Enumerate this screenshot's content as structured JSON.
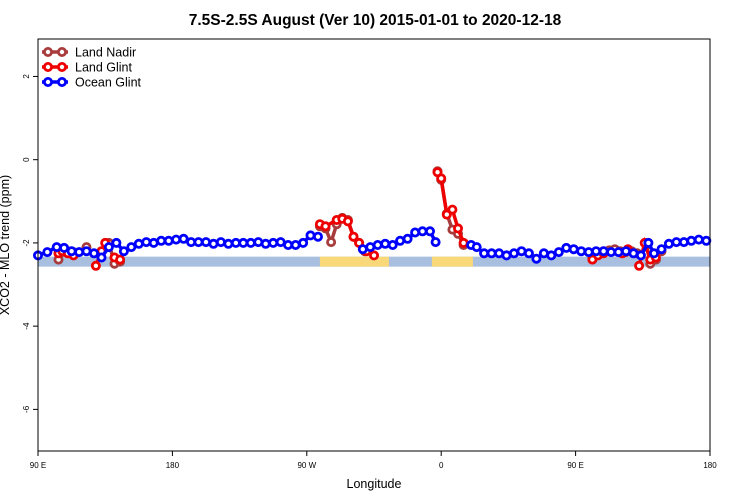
{
  "chart_data": {
    "type": "line",
    "title": "7.5S-2.5S August (Ver 10)   2015-01-01 to 2020-12-18",
    "xlabel": "Longitude",
    "ylabel": "XCO2 - MLO trend (ppm)",
    "xlim": [
      90,
      450
    ],
    "ylim": [
      -7,
      2.9
    ],
    "x_ticks": [
      {
        "value": 90,
        "label": "90 E"
      },
      {
        "value": 162,
        "label": "180"
      },
      {
        "value": 234,
        "label": "90 W"
      },
      {
        "value": 306,
        "label": "0"
      },
      {
        "value": 378,
        "label": "90 E"
      },
      {
        "value": 450,
        "label": "180"
      }
    ],
    "y_ticks": [
      {
        "value": 2,
        "label": "2"
      },
      {
        "value": 0,
        "label": "0"
      },
      {
        "value": -2,
        "label": "-2"
      },
      {
        "value": -4,
        "label": "-4"
      },
      {
        "value": -6,
        "label": "-6"
      }
    ],
    "grid": false,
    "legend_position": "top-left",
    "surface_band": {
      "y": -2.45,
      "ocean_color": "#a8bfe0",
      "land_color": "#f8d878",
      "land_ranges": [
        [
          241,
          278
        ],
        [
          301,
          323
        ]
      ]
    },
    "series": [
      {
        "name": "Land Nadir",
        "color": "#a83c3c",
        "segments": [
          [
            [
              101,
              -2.4
            ],
            [
              103,
              -2.22
            ],
            [
              106,
              -2.2
            ],
            [
              109,
              -2.22
            ]
          ],
          [
            [
              116,
              -2.1
            ]
          ],
          [
            [
              128,
              -2.0
            ],
            [
              131,
              -2.5
            ],
            [
              134,
              -2.45
            ]
          ],
          [
            [
              241,
              -1.6
            ],
            [
              244,
              -1.65
            ],
            [
              247,
              -1.98
            ],
            [
              250,
              -1.55
            ],
            [
              253,
              -1.4
            ],
            [
              256,
              -1.45
            ],
            [
              259,
              -1.85
            ],
            [
              262,
              -2.0
            ],
            [
              265,
              -2.2
            ]
          ],
          [
            [
              304,
              -0.28
            ],
            [
              306,
              -0.48
            ],
            [
              309,
              -1.3
            ],
            [
              312,
              -1.68
            ],
            [
              315,
              -1.78
            ],
            [
              318,
              -2.05
            ]
          ],
          [
            [
              387,
              -2.35
            ],
            [
              390,
              -2.25
            ],
            [
              393,
              -2.2
            ],
            [
              396,
              -2.18
            ],
            [
              399,
              -2.15
            ],
            [
              402,
              -2.2
            ],
            [
              405,
              -2.22
            ],
            [
              408,
              -2.2
            ],
            [
              411,
              -2.25
            ]
          ],
          [
            [
              416,
              -2.05
            ],
            [
              418,
              -2.5
            ],
            [
              421,
              -2.4
            ],
            [
              424,
              -2.2
            ]
          ]
        ]
      },
      {
        "name": "Land Glint",
        "color": "#ee0000",
        "segments": [
          [
            [
              101,
              -2.25
            ],
            [
              103,
              -2.2
            ],
            [
              106,
              -2.25
            ],
            [
              109,
              -2.3
            ]
          ],
          [
            [
              121,
              -2.55
            ],
            [
              124,
              -2.2
            ],
            [
              126,
              -2.0
            ]
          ],
          [
            [
              131,
              -2.35
            ],
            [
              134,
              -2.4
            ]
          ],
          [
            [
              241,
              -1.55
            ],
            [
              244,
              -1.6
            ],
            [
              250,
              -1.45
            ],
            [
              253,
              -1.42
            ],
            [
              256,
              -1.48
            ],
            [
              259,
              -1.85
            ],
            [
              262,
              -2.0
            ],
            [
              266,
              -2.2
            ],
            [
              270,
              -2.3
            ]
          ],
          [
            [
              304,
              -0.3
            ],
            [
              306,
              -0.45
            ],
            [
              309,
              -1.32
            ],
            [
              312,
              -1.2
            ],
            [
              315,
              -1.65
            ],
            [
              318,
              -2.0
            ]
          ],
          [
            [
              387,
              -2.4
            ],
            [
              390,
              -2.3
            ],
            [
              393,
              -2.25
            ]
          ],
          [
            [
              403,
              -2.25
            ],
            [
              406,
              -2.15
            ]
          ],
          [
            [
              412,
              -2.55
            ],
            [
              415,
              -2.0
            ],
            [
              418,
              -2.4
            ],
            [
              421,
              -2.35
            ]
          ]
        ]
      },
      {
        "name": "Ocean Glint",
        "color": "#0000ff",
        "segments": [
          [
            [
              90,
              -2.3
            ],
            [
              95,
              -2.22
            ],
            [
              100,
              -2.1
            ],
            [
              104,
              -2.12
            ],
            [
              108,
              -2.2
            ],
            [
              112,
              -2.22
            ],
            [
              116,
              -2.2
            ],
            [
              120,
              -2.25
            ],
            [
              124,
              -2.35
            ],
            [
              128,
              -2.1
            ],
            [
              132,
              -2.0
            ],
            [
              136,
              -2.2
            ],
            [
              140,
              -2.1
            ],
            [
              144,
              -2.02
            ],
            [
              148,
              -1.98
            ],
            [
              152,
              -2.0
            ],
            [
              156,
              -1.95
            ],
            [
              160,
              -1.95
            ],
            [
              164,
              -1.92
            ],
            [
              168,
              -1.9
            ],
            [
              172,
              -1.98
            ],
            [
              176,
              -1.98
            ],
            [
              180,
              -1.98
            ],
            [
              184,
              -2.02
            ],
            [
              188,
              -1.98
            ],
            [
              192,
              -2.02
            ],
            [
              196,
              -2.0
            ],
            [
              200,
              -2.0
            ],
            [
              204,
              -2.0
            ],
            [
              208,
              -1.98
            ],
            [
              212,
              -2.02
            ],
            [
              216,
              -2.0
            ],
            [
              220,
              -1.98
            ],
            [
              224,
              -2.05
            ],
            [
              228,
              -2.05
            ],
            [
              232,
              -2.0
            ],
            [
              236,
              -1.82
            ],
            [
              240,
              -1.85
            ]
          ],
          [
            [
              264,
              -2.15
            ],
            [
              268,
              -2.1
            ],
            [
              272,
              -2.05
            ],
            [
              276,
              -2.02
            ],
            [
              280,
              -2.05
            ],
            [
              284,
              -1.95
            ],
            [
              288,
              -1.9
            ],
            [
              292,
              -1.75
            ],
            [
              296,
              -1.72
            ],
            [
              300,
              -1.72
            ],
            [
              303,
              -1.98
            ]
          ],
          [
            [
              322,
              -2.05
            ],
            [
              325,
              -2.1
            ],
            [
              329,
              -2.25
            ],
            [
              333,
              -2.25
            ],
            [
              337,
              -2.25
            ],
            [
              341,
              -2.3
            ],
            [
              345,
              -2.25
            ],
            [
              349,
              -2.2
            ],
            [
              353,
              -2.25
            ],
            [
              357,
              -2.38
            ],
            [
              361,
              -2.25
            ],
            [
              365,
              -2.3
            ],
            [
              369,
              -2.22
            ],
            [
              373,
              -2.12
            ],
            [
              377,
              -2.15
            ],
            [
              381,
              -2.2
            ],
            [
              385,
              -2.22
            ],
            [
              389,
              -2.2
            ],
            [
              393,
              -2.2
            ],
            [
              397,
              -2.22
            ],
            [
              401,
              -2.22
            ],
            [
              405,
              -2.2
            ],
            [
              409,
              -2.25
            ],
            [
              413,
              -2.3
            ],
            [
              417,
              -2.0
            ],
            [
              420,
              -2.25
            ],
            [
              424,
              -2.15
            ],
            [
              428,
              -2.02
            ],
            [
              432,
              -1.98
            ],
            [
              436,
              -1.98
            ],
            [
              440,
              -1.95
            ],
            [
              444,
              -1.92
            ],
            [
              448,
              -1.95
            ]
          ]
        ]
      }
    ]
  }
}
